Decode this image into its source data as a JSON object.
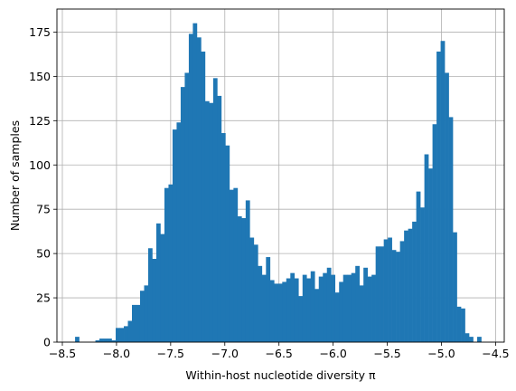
{
  "chart_data": {
    "type": "bar",
    "subtype": "histogram",
    "title": "",
    "xlabel": "Within-host nucleotide diversity π",
    "ylabel": "Number of samples",
    "xlim": [
      -8.55,
      -4.42
    ],
    "ylim": [
      0,
      188
    ],
    "grid": true,
    "legend": "none",
    "bar_color": "#1f77b4",
    "xticks": [
      -8.5,
      -8.0,
      -7.5,
      -7.0,
      -6.5,
      -6.0,
      -5.5,
      -5.0,
      -4.5
    ],
    "xtick_labels": [
      "−8.5",
      "−8.0",
      "−7.5",
      "−7.0",
      "−6.5",
      "−6.0",
      "−5.5",
      "−5.0",
      "−4.5"
    ],
    "yticks": [
      0,
      25,
      50,
      75,
      100,
      125,
      150,
      175
    ],
    "ytick_labels": [
      "0",
      "25",
      "50",
      "75",
      "100",
      "125",
      "150",
      "175"
    ],
    "bin_start": -8.42,
    "bin_width": 0.0375,
    "values": [
      0,
      3,
      0,
      0,
      0,
      0,
      1,
      2,
      2,
      2,
      1,
      8,
      8,
      9,
      12,
      21,
      21,
      29,
      32,
      53,
      47,
      67,
      61,
      87,
      89,
      120,
      124,
      144,
      152,
      174,
      180,
      172,
      164,
      136,
      135,
      149,
      139,
      118,
      111,
      86,
      87,
      71,
      70,
      80,
      59,
      55,
      43,
      38,
      48,
      35,
      33,
      33,
      34,
      36,
      39,
      36,
      26,
      38,
      36,
      40,
      30,
      37,
      39,
      42,
      38,
      28,
      34,
      38,
      38,
      39,
      43,
      32,
      42,
      37,
      38,
      54,
      54,
      58,
      59,
      52,
      51,
      57,
      63,
      64,
      68,
      85,
      76,
      106,
      98,
      123,
      164,
      170,
      152,
      127,
      62,
      20,
      19,
      5,
      3,
      0,
      3
    ],
    "x": [
      -8.42,
      -8.3825,
      -8.345,
      -8.3075,
      -8.27,
      -8.2325,
      -8.195,
      -8.1575,
      -8.12,
      -8.0825,
      -8.045,
      -8.0075,
      -7.97,
      -7.9325,
      -7.895,
      -7.8575,
      -7.82,
      -7.7825,
      -7.745,
      -7.7075,
      -7.67,
      -7.6325,
      -7.595,
      -7.5575,
      -7.52,
      -7.4825,
      -7.445,
      -7.4075,
      -7.37,
      -7.3325,
      -7.295,
      -7.2575,
      -7.22,
      -7.1825,
      -7.145,
      -7.1075,
      -7.07,
      -7.0325,
      -6.995,
      -6.9575,
      -6.92,
      -6.8825,
      -6.845,
      -6.8075,
      -6.77,
      -6.7325,
      -6.695,
      -6.6575,
      -6.62,
      -6.5825,
      -6.545,
      -6.5075,
      -6.47,
      -6.4325,
      -6.395,
      -6.3575,
      -6.32,
      -6.2825,
      -6.245,
      -6.2075,
      -6.17,
      -6.1325,
      -6.095,
      -6.0575,
      -6.02,
      -5.9825,
      -5.945,
      -5.9075,
      -5.87,
      -5.8325,
      -5.795,
      -5.7575,
      -5.72,
      -5.6825,
      -5.645,
      -5.6075,
      -5.57,
      -5.5325,
      -5.495,
      -5.4575,
      -5.42,
      -5.3825,
      -5.345,
      -5.3075,
      -5.27,
      -5.2325,
      -5.195,
      -5.1575,
      -5.12,
      -5.0825,
      -5.045,
      -5.0075,
      -4.97,
      -4.9325,
      -4.895,
      -4.8575,
      -4.82,
      -4.7825,
      -4.745,
      -4.7075,
      -4.67
    ]
  }
}
